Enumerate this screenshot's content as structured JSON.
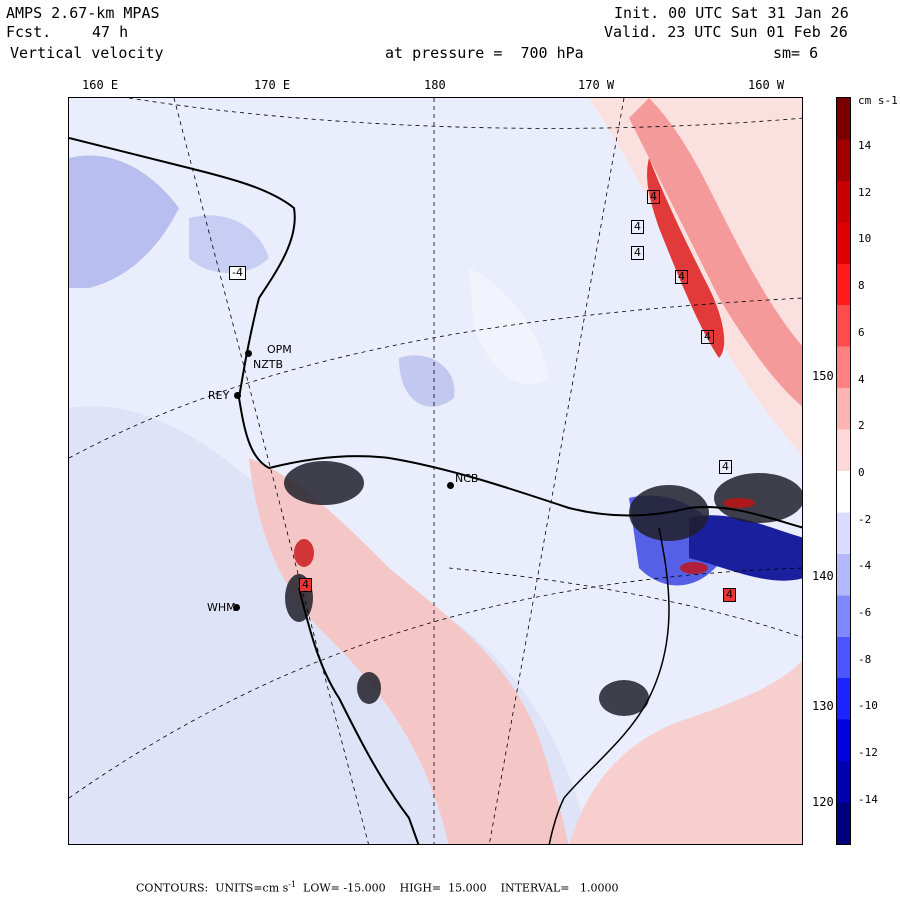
{
  "header": {
    "model": "AMPS 2.67-km MPAS",
    "forecast_label": "Fcst.",
    "forecast_hours": "47 h",
    "variable": "Vertical velocity",
    "init": "Init. 00 UTC Sat 31 Jan 26",
    "valid": "Valid. 23 UTC Sun 01 Feb 26",
    "pressure": "at pressure =  700 hPa",
    "smoothing": "sm= 6"
  },
  "longitude_labels": [
    "160 E",
    "170 E",
    "180",
    "170 W",
    "160 W"
  ],
  "latitude_labels": [
    "150 W",
    "140 W",
    "130 W",
    "120 W"
  ],
  "stations": [
    "OPM",
    "NZTB",
    "REY",
    "NCB",
    "WHM"
  ],
  "contour_boxes": [
    "-4",
    "4",
    "4",
    "4",
    "4",
    "4",
    "4",
    "4",
    "4"
  ],
  "colorbar": {
    "units": "cm s-1",
    "labels": [
      "14",
      "12",
      "10",
      "8",
      "6",
      "4",
      "2",
      "0",
      "-2",
      "-4",
      "-6",
      "-8",
      "-10",
      "-12",
      "-14"
    ],
    "colors": [
      "#7a0000",
      "#a00000",
      "#c80000",
      "#e00000",
      "#ff1a1a",
      "#ff4d4d",
      "#ff8080",
      "#ffb3b3",
      "#ffd9d9",
      "#ffffff",
      "#d9dcff",
      "#b3b8ff",
      "#8088ff",
      "#4d55ff",
      "#1a24ff",
      "#0000e0",
      "#0000b0",
      "#000080"
    ]
  },
  "footer": {
    "contours": "CONTOURS:  UNITS=cm s",
    "sup": "-1",
    "low": "  LOW= -15.000",
    "high": "    HIGH=  15.000",
    "interval": "    INTERVAL=   1.0000"
  }
}
